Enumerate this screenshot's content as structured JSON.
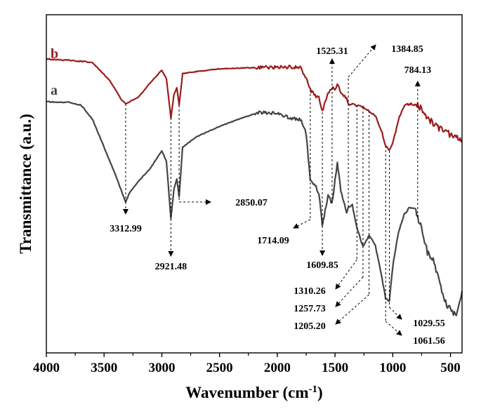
{
  "chart_data": {
    "type": "line",
    "xlabel": "Wavenumber (cm",
    "xlabel_sup": "-1",
    "xlabel_close": ")",
    "ylabel": "Transmittance (a.u.)",
    "xlim": [
      4000,
      400
    ],
    "x_reversed": true,
    "x_ticks": [
      "4000",
      "3500",
      "3000",
      "2500",
      "2000",
      "1500",
      "1000",
      "500"
    ],
    "y_ticks_shown": false,
    "grid": false,
    "series": [
      {
        "name": "b",
        "color": "#9b1c1c",
        "points": [
          [
            4000,
            84
          ],
          [
            3800,
            86
          ],
          [
            3600,
            89
          ],
          [
            3450,
            115
          ],
          [
            3350,
            142
          ],
          [
            3312.99,
            148
          ],
          [
            3200,
            138
          ],
          [
            3100,
            118
          ],
          [
            3000,
            100
          ],
          [
            2960,
            112
          ],
          [
            2921.48,
            168
          ],
          [
            2895,
            135
          ],
          [
            2870,
            125
          ],
          [
            2850.07,
            150
          ],
          [
            2820,
            105
          ],
          [
            2700,
            102
          ],
          [
            2500,
            98
          ],
          [
            2300,
            97
          ],
          [
            2100,
            96
          ],
          [
            1900,
            96
          ],
          [
            1800,
            95
          ],
          [
            1750,
            112
          ],
          [
            1714.09,
            128
          ],
          [
            1680,
            135
          ],
          [
            1640,
            140
          ],
          [
            1609.85,
            160
          ],
          [
            1560,
            132
          ],
          [
            1525.31,
            125
          ],
          [
            1500,
            128
          ],
          [
            1480,
            118
          ],
          [
            1450,
            132
          ],
          [
            1400,
            140
          ],
          [
            1384.85,
            148
          ],
          [
            1350,
            148
          ],
          [
            1310.26,
            150
          ],
          [
            1257.73,
            153
          ],
          [
            1205.2,
            158
          ],
          [
            1150,
            165
          ],
          [
            1100,
            185
          ],
          [
            1061.56,
            208
          ],
          [
            1029.55,
            215
          ],
          [
            1000,
            205
          ],
          [
            950,
            170
          ],
          [
            900,
            150
          ],
          [
            850,
            148
          ],
          [
            784.13,
            150
          ],
          [
            750,
            155
          ],
          [
            700,
            168
          ],
          [
            600,
            183
          ],
          [
            500,
            192
          ],
          [
            400,
            200
          ]
        ]
      },
      {
        "name": "a",
        "color": "#444444",
        "points": [
          [
            4000,
            145
          ],
          [
            3800,
            146
          ],
          [
            3700,
            150
          ],
          [
            3600,
            170
          ],
          [
            3500,
            210
          ],
          [
            3400,
            250
          ],
          [
            3350,
            272
          ],
          [
            3312.99,
            288
          ],
          [
            3280,
            275
          ],
          [
            3200,
            258
          ],
          [
            3100,
            240
          ],
          [
            3000,
            215
          ],
          [
            2960,
            230
          ],
          [
            2921.48,
            312
          ],
          [
            2895,
            270
          ],
          [
            2870,
            255
          ],
          [
            2850.07,
            280
          ],
          [
            2820,
            210
          ],
          [
            2700,
            195
          ],
          [
            2500,
            180
          ],
          [
            2300,
            168
          ],
          [
            2150,
            160
          ],
          [
            2000,
            162
          ],
          [
            1900,
            168
          ],
          [
            1800,
            170
          ],
          [
            1750,
            190
          ],
          [
            1714.09,
            258
          ],
          [
            1680,
            262
          ],
          [
            1640,
            275
          ],
          [
            1609.85,
            322
          ],
          [
            1560,
            278
          ],
          [
            1525.31,
            290
          ],
          [
            1500,
            258
          ],
          [
            1480,
            232
          ],
          [
            1450,
            272
          ],
          [
            1400,
            302
          ],
          [
            1384.85,
            295
          ],
          [
            1350,
            292
          ],
          [
            1310.26,
            325
          ],
          [
            1257.73,
            352
          ],
          [
            1205.2,
            335
          ],
          [
            1150,
            350
          ],
          [
            1100,
            390
          ],
          [
            1061.56,
            425
          ],
          [
            1029.55,
            430
          ],
          [
            1000,
            380
          ],
          [
            950,
            330
          ],
          [
            900,
            305
          ],
          [
            850,
            295
          ],
          [
            800,
            298
          ],
          [
            784.13,
            310
          ],
          [
            750,
            325
          ],
          [
            700,
            360
          ],
          [
            650,
            370
          ],
          [
            600,
            400
          ],
          [
            550,
            430
          ],
          [
            500,
            440
          ],
          [
            450,
            450
          ],
          [
            400,
            415
          ]
        ]
      }
    ],
    "annotations": [
      {
        "text": "3312.99",
        "x": 3312.99
      },
      {
        "text": "2921.48",
        "x": 2921.48
      },
      {
        "text": "2850.07",
        "x": 2850.07
      },
      {
        "text": "1714.09",
        "x": 1714.09
      },
      {
        "text": "1609.85",
        "x": 1609.85
      },
      {
        "text": "1525.31",
        "x": 1525.31
      },
      {
        "text": "1384.85",
        "x": 1384.85
      },
      {
        "text": "784.13",
        "x": 784.13
      },
      {
        "text": "1310.26",
        "x": 1310.26
      },
      {
        "text": "1257.73",
        "x": 1257.73
      },
      {
        "text": "1205.20",
        "x": 1205.2
      },
      {
        "text": "1029.55",
        "x": 1029.55
      },
      {
        "text": "1061.56",
        "x": 1061.56
      }
    ]
  }
}
